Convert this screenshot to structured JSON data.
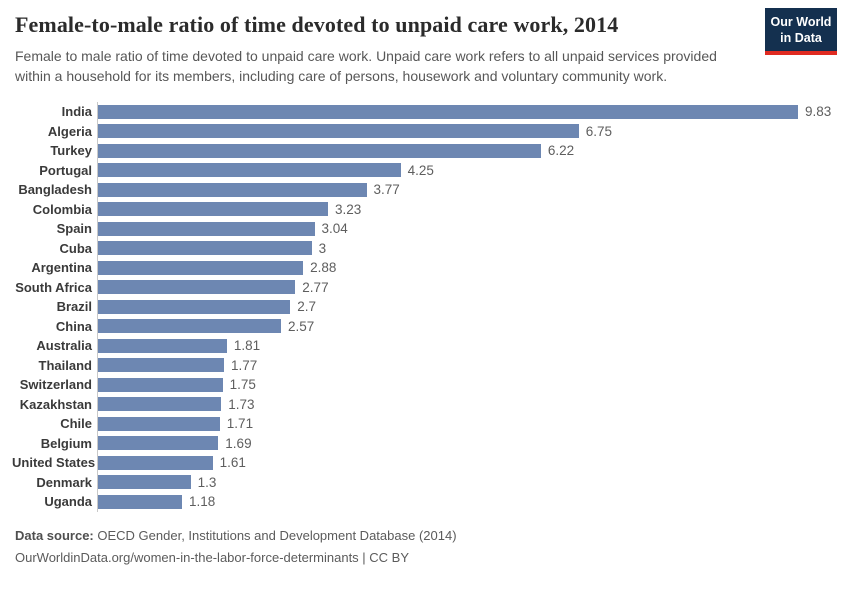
{
  "header": {
    "title": "Female-to-male ratio of time devoted to unpaid care work, 2014",
    "subtitle": "Female to male ratio of time devoted to unpaid care work. Unpaid care work refers to all unpaid services provided within a household for its members, including care of persons, housework and voluntary community work.",
    "logo": {
      "line1": "Our World",
      "line2": "in Data"
    }
  },
  "chart_data": {
    "type": "bar",
    "orientation": "horizontal",
    "title": "Female-to-male ratio of time devoted to unpaid care work, 2014",
    "categories": [
      "India",
      "Algeria",
      "Turkey",
      "Portugal",
      "Bangladesh",
      "Colombia",
      "Spain",
      "Cuba",
      "Argentina",
      "South Africa",
      "Brazil",
      "China",
      "Australia",
      "Thailand",
      "Switzerland",
      "Kazakhstan",
      "Chile",
      "Belgium",
      "United States",
      "Denmark",
      "Uganda"
    ],
    "values": [
      9.83,
      6.75,
      6.22,
      4.25,
      3.77,
      3.23,
      3.04,
      3,
      2.88,
      2.77,
      2.7,
      2.57,
      1.81,
      1.77,
      1.75,
      1.73,
      1.71,
      1.69,
      1.61,
      1.3,
      1.18
    ],
    "value_labels": [
      "9.83",
      "6.75",
      "6.22",
      "4.25",
      "3.77",
      "3.23",
      "3.04",
      "3",
      "2.88",
      "2.77",
      "2.7",
      "2.57",
      "1.81",
      "1.77",
      "1.75",
      "1.73",
      "1.71",
      "1.69",
      "1.61",
      "1.3",
      "1.18"
    ],
    "xlabel": "",
    "ylabel": "",
    "xlim": [
      0,
      9.83
    ],
    "grid": false,
    "legend": "none",
    "bar_color": "#6d87b2"
  },
  "footer": {
    "source_label": "Data source:",
    "source_text": "OECD Gender, Institutions and Development Database (2014)",
    "citation": "OurWorldinData.org/women-in-the-labor-force-determinants | CC BY"
  },
  "colors": {
    "bar": "#6d87b2",
    "logo_navy": "#14304f",
    "logo_red": "#e02b21",
    "axis_line": "#c9c9c9",
    "title_text": "#2b2b2b",
    "subtitle_text": "#575757",
    "value_text": "#5e5e5e"
  }
}
